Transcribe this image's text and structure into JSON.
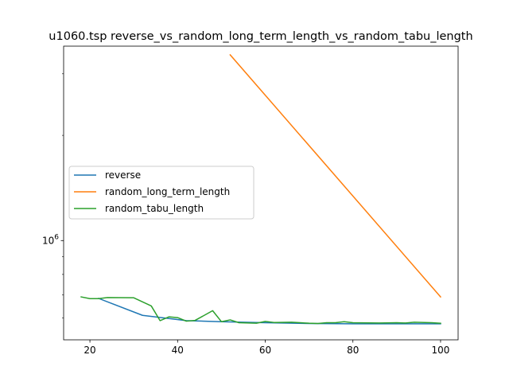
{
  "chart_data": {
    "type": "line",
    "title": "u1060.tsp  reverse_vs_random_long_term_length_vs_random_tabu_length",
    "xlabel": "",
    "ylabel": "",
    "xlim": [
      14,
      104
    ],
    "ylim": [
      520000,
      3600000
    ],
    "yscale": "log",
    "x_ticks": [
      20,
      40,
      60,
      80,
      100
    ],
    "y_ticks": [
      {
        "value": 1000000,
        "base": "10",
        "exp": "6"
      }
    ],
    "grid": false,
    "legend_position": "center-left",
    "series": [
      {
        "name": "reverse",
        "color": "#1f77b4",
        "x": [
          22,
          32,
          42,
          50,
          60,
          70,
          80,
          90,
          100
        ],
        "y": [
          683000,
          611000,
          590000,
          586000,
          582000,
          579000,
          578000,
          578000,
          578000
        ]
      },
      {
        "name": "random_long_term_length",
        "color": "#ff7f0e",
        "x": [
          52,
          100
        ],
        "y": [
          3400000,
          690000
        ]
      },
      {
        "name": "random_tabu_length",
        "color": "#2ca02c",
        "x": [
          18,
          20,
          22,
          24,
          30,
          34,
          36,
          38,
          40,
          42,
          44,
          48,
          50,
          52,
          54,
          58,
          60,
          62,
          66,
          70,
          72,
          74,
          76,
          78,
          80,
          86,
          90,
          92,
          94,
          98,
          100
        ],
        "y": [
          690000,
          682000,
          682000,
          687000,
          686000,
          650000,
          590000,
          605000,
          602000,
          588000,
          591000,
          630000,
          586000,
          593000,
          582000,
          580000,
          587000,
          583000,
          584000,
          580000,
          579000,
          582000,
          582000,
          586000,
          582000,
          581000,
          582000,
          581000,
          584000,
          582000,
          580000
        ]
      }
    ]
  }
}
